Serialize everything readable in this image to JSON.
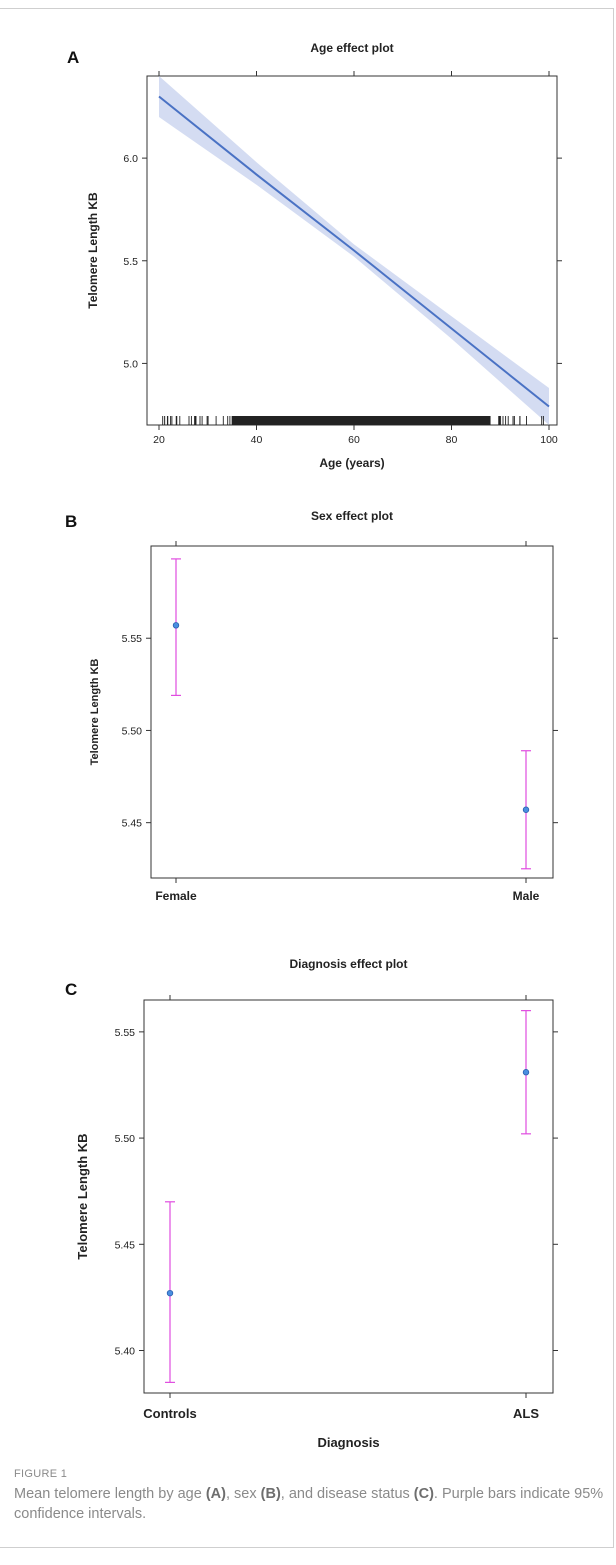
{
  "chart_data": [
    {
      "panel": "A",
      "type": "line",
      "title": "Age effect plot",
      "xlabel": "Age (years)",
      "ylabel": "Telomere Length KB",
      "xlim": [
        20,
        100
      ],
      "ylim": [
        4.7,
        6.4
      ],
      "xticks": [
        20,
        40,
        60,
        80,
        100
      ],
      "yticks": [
        5.0,
        5.5,
        6.0
      ],
      "yticklabels": [
        "5.0",
        "5.5",
        "6.0"
      ],
      "series": [
        {
          "x": [
            20,
            40,
            60,
            80,
            100
          ],
          "y": [
            6.3,
            5.92,
            5.55,
            5.17,
            4.79
          ],
          "lower": [
            6.2,
            5.87,
            5.52,
            5.12,
            4.7
          ],
          "upper": [
            6.4,
            5.98,
            5.58,
            5.23,
            4.88
          ]
        }
      ],
      "rug": "dense rug of observed ages, concentrated between ages 35 and 88"
    },
    {
      "panel": "B",
      "type": "scatter",
      "title": "Sex effect plot",
      "xlabel": "",
      "ylabel": "Telomere Length KB",
      "categories": [
        "Female",
        "Male"
      ],
      "ylim": [
        5.42,
        5.6
      ],
      "yticks": [
        5.45,
        5.5,
        5.55
      ],
      "values": [
        5.557,
        5.457
      ],
      "lower": [
        5.519,
        5.425
      ],
      "upper": [
        5.593,
        5.489
      ]
    },
    {
      "panel": "C",
      "type": "scatter",
      "title": "Diagnosis effect plot",
      "xlabel": "Diagnosis",
      "ylabel": "Telomere Length KB",
      "categories": [
        "Controls",
        "ALS"
      ],
      "ylim": [
        5.38,
        5.565
      ],
      "yticks": [
        5.4,
        5.45,
        5.5,
        5.55
      ],
      "values": [
        5.427,
        5.531
      ],
      "lower": [
        5.385,
        5.502
      ],
      "upper": [
        5.47,
        5.56
      ]
    }
  ],
  "colors": {
    "line": "#4a72c4",
    "band": "#d4dcf2",
    "point": "#4a8fe0",
    "errorbar": "#e04ce0",
    "axis": "#333333"
  },
  "caption": {
    "label": "FIGURE 1",
    "text_1": "Mean telomere length by age ",
    "a": "(A)",
    "text_2": ", sex ",
    "b": "(B)",
    "text_3": ", and disease status ",
    "c": "(C)",
    "text_4": ". Purple bars indicate 95% confidence intervals."
  }
}
